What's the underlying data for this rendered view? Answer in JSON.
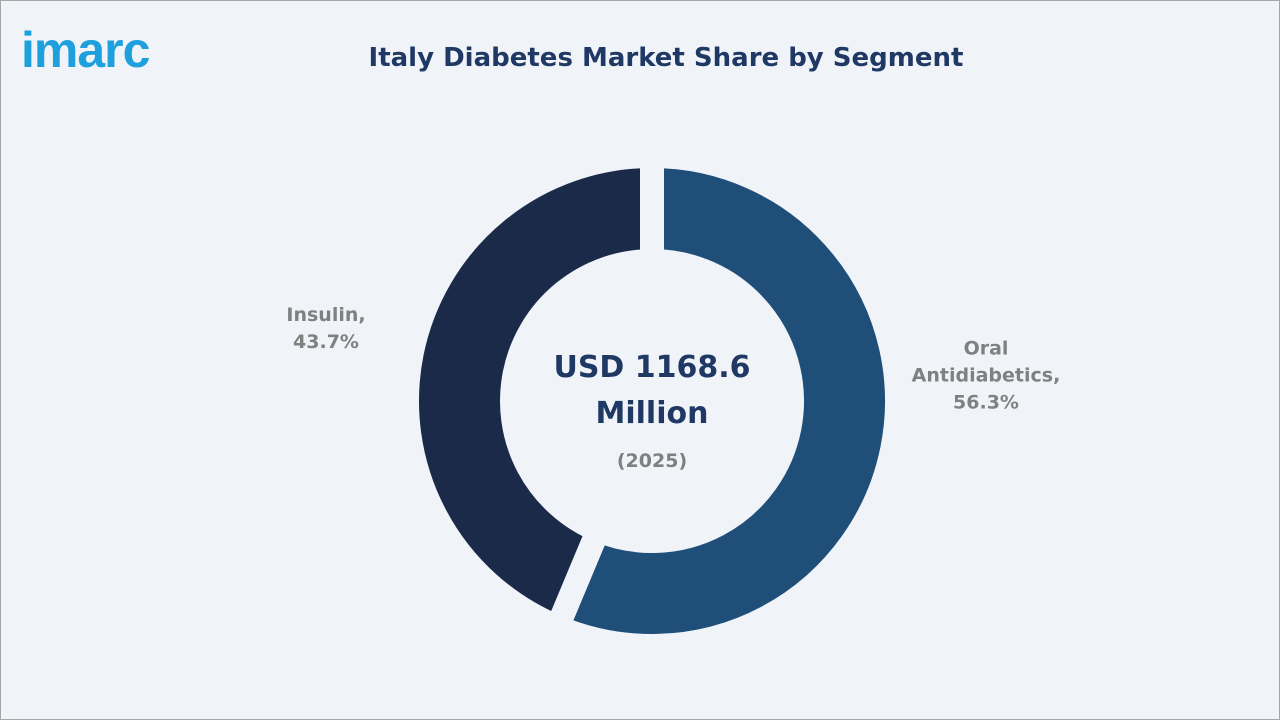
{
  "logo": "imarc",
  "chart_data": {
    "type": "donut",
    "title": "Italy Diabetes Market Share by Segment",
    "center_label": "USD 1168.6 Million",
    "center_sublabel": "(2025)",
    "values": [
      56.3,
      43.7
    ],
    "value_labels": [
      "Oral Antidiabetics, 56.3%",
      "Insulin, 43.7%"
    ],
    "colors": [
      "#1f4e79",
      "#1c2a4a"
    ]
  }
}
